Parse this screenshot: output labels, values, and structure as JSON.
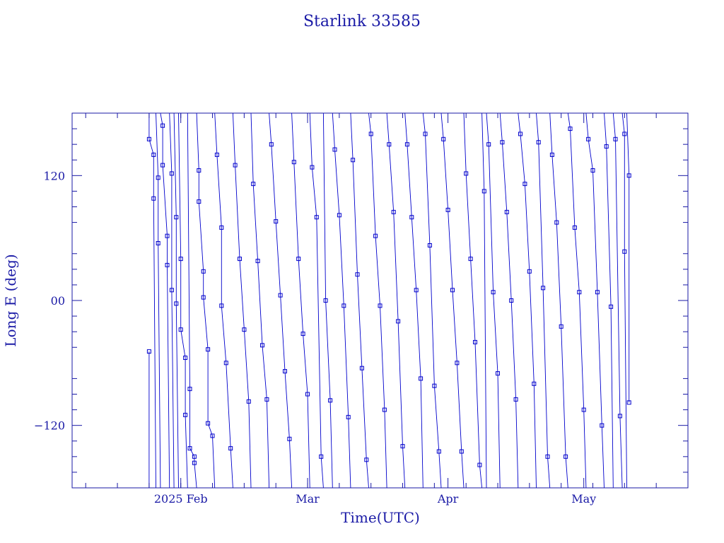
{
  "chart_data": {
    "type": "scatter",
    "title": "Starlink 33585",
    "xlabel": "Time(UTC)",
    "ylabel": "Long E (deg)",
    "xlim": [
      "2025-01-08",
      "2025-05-24"
    ],
    "ylim": [
      -180,
      180
    ],
    "x_ticks": [
      {
        "date": "2025-02-01",
        "label": "2025 Feb"
      },
      {
        "date": "2025-03-01",
        "label": "Mar"
      },
      {
        "date": "2025-04-01",
        "label": "Apr"
      },
      {
        "date": "2025-05-01",
        "label": "May"
      }
    ],
    "y_ticks": [
      {
        "value": 120,
        "label": "120"
      },
      {
        "value": 0,
        "label": "00"
      },
      {
        "value": -120,
        "label": "−120"
      }
    ],
    "colors": {
      "line": "#0000cc",
      "axis": "#1a1aa6"
    },
    "series": [
      {
        "marker": "square",
        "points": [
          [
            "2025-01-25",
            -49
          ],
          [
            "2025-01-25",
            155
          ],
          [
            "2025-01-26",
            140
          ],
          [
            "2025-01-26",
            98
          ],
          [
            "2025-01-27",
            118
          ],
          [
            "2025-01-27",
            55
          ],
          [
            "2025-01-28",
            168
          ],
          [
            "2025-01-28",
            130
          ],
          [
            "2025-01-29",
            62
          ],
          [
            "2025-01-29",
            34
          ],
          [
            "2025-01-30",
            122
          ],
          [
            "2025-01-30",
            10
          ],
          [
            "2025-01-31",
            80
          ],
          [
            "2025-01-31",
            -3
          ],
          [
            "2025-02-01",
            40
          ],
          [
            "2025-02-01",
            -28
          ],
          [
            "2025-02-02",
            -55
          ],
          [
            "2025-02-02",
            -110
          ],
          [
            "2025-02-03",
            -85
          ],
          [
            "2025-02-03",
            -142
          ],
          [
            "2025-02-04",
            -150
          ],
          [
            "2025-02-04",
            -156
          ],
          [
            "2025-02-05",
            125
          ],
          [
            "2025-02-05",
            95
          ],
          [
            "2025-02-06",
            28
          ],
          [
            "2025-02-06",
            3
          ],
          [
            "2025-02-07",
            -47
          ],
          [
            "2025-02-07",
            -118
          ],
          [
            "2025-02-08",
            -130
          ],
          [
            "2025-02-09",
            140
          ],
          [
            "2025-02-10",
            70
          ],
          [
            "2025-02-10",
            -5
          ],
          [
            "2025-02-11",
            -60
          ],
          [
            "2025-02-12",
            -142
          ],
          [
            "2025-02-13",
            130
          ],
          [
            "2025-02-14",
            40
          ],
          [
            "2025-02-15",
            -28
          ],
          [
            "2025-02-16",
            -97
          ],
          [
            "2025-02-17",
            112
          ],
          [
            "2025-02-18",
            38
          ],
          [
            "2025-02-19",
            -43
          ],
          [
            "2025-02-20",
            -95
          ],
          [
            "2025-02-21",
            150
          ],
          [
            "2025-02-22",
            76
          ],
          [
            "2025-02-23",
            5
          ],
          [
            "2025-02-24",
            -68
          ],
          [
            "2025-02-25",
            -133
          ],
          [
            "2025-02-26",
            133
          ],
          [
            "2025-02-27",
            40
          ],
          [
            "2025-02-28",
            -32
          ],
          [
            "2025-03-01",
            -90
          ],
          [
            "2025-03-02",
            128
          ],
          [
            "2025-03-03",
            80
          ],
          [
            "2025-03-04",
            -150
          ],
          [
            "2025-03-05",
            0
          ],
          [
            "2025-03-06",
            -96
          ],
          [
            "2025-03-07",
            145
          ],
          [
            "2025-03-08",
            82
          ],
          [
            "2025-03-09",
            -5
          ],
          [
            "2025-03-10",
            -112
          ],
          [
            "2025-03-11",
            135
          ],
          [
            "2025-03-12",
            25
          ],
          [
            "2025-03-13",
            -65
          ],
          [
            "2025-03-14",
            -153
          ],
          [
            "2025-03-15",
            160
          ],
          [
            "2025-03-16",
            62
          ],
          [
            "2025-03-17",
            -5
          ],
          [
            "2025-03-18",
            -105
          ],
          [
            "2025-03-19",
            150
          ],
          [
            "2025-03-20",
            85
          ],
          [
            "2025-03-21",
            -20
          ],
          [
            "2025-03-22",
            -140
          ],
          [
            "2025-03-23",
            150
          ],
          [
            "2025-03-24",
            80
          ],
          [
            "2025-03-25",
            10
          ],
          [
            "2025-03-26",
            -75
          ],
          [
            "2025-03-27",
            160
          ],
          [
            "2025-03-28",
            53
          ],
          [
            "2025-03-29",
            -82
          ],
          [
            "2025-03-30",
            -145
          ],
          [
            "2025-03-31",
            155
          ],
          [
            "2025-04-01",
            87
          ],
          [
            "2025-04-02",
            10
          ],
          [
            "2025-04-03",
            -60
          ],
          [
            "2025-04-04",
            -145
          ],
          [
            "2025-04-05",
            122
          ],
          [
            "2025-04-06",
            40
          ],
          [
            "2025-04-07",
            -40
          ],
          [
            "2025-04-08",
            -158
          ],
          [
            "2025-04-09",
            105
          ],
          [
            "2025-04-10",
            150
          ],
          [
            "2025-04-11",
            8
          ],
          [
            "2025-04-12",
            -70
          ],
          [
            "2025-04-13",
            152
          ],
          [
            "2025-04-14",
            85
          ],
          [
            "2025-04-15",
            0
          ],
          [
            "2025-04-16",
            -95
          ],
          [
            "2025-04-17",
            160
          ],
          [
            "2025-04-18",
            112
          ],
          [
            "2025-04-19",
            28
          ],
          [
            "2025-04-20",
            -80
          ],
          [
            "2025-04-21",
            152
          ],
          [
            "2025-04-22",
            12
          ],
          [
            "2025-04-23",
            -150
          ],
          [
            "2025-04-24",
            140
          ],
          [
            "2025-04-25",
            75
          ],
          [
            "2025-04-26",
            -25
          ],
          [
            "2025-04-27",
            -150
          ],
          [
            "2025-04-28",
            165
          ],
          [
            "2025-04-29",
            70
          ],
          [
            "2025-04-30",
            8
          ],
          [
            "2025-05-01",
            -105
          ],
          [
            "2025-05-02",
            155
          ],
          [
            "2025-05-03",
            125
          ],
          [
            "2025-05-04",
            8
          ],
          [
            "2025-05-05",
            -120
          ],
          [
            "2025-05-06",
            148
          ],
          [
            "2025-05-07",
            -6
          ],
          [
            "2025-05-08",
            155
          ],
          [
            "2025-05-09",
            -111
          ],
          [
            "2025-05-10",
            160
          ],
          [
            "2025-05-10",
            47
          ],
          [
            "2025-05-11",
            120
          ],
          [
            "2025-05-11",
            -98
          ]
        ]
      }
    ],
    "grid": false
  }
}
